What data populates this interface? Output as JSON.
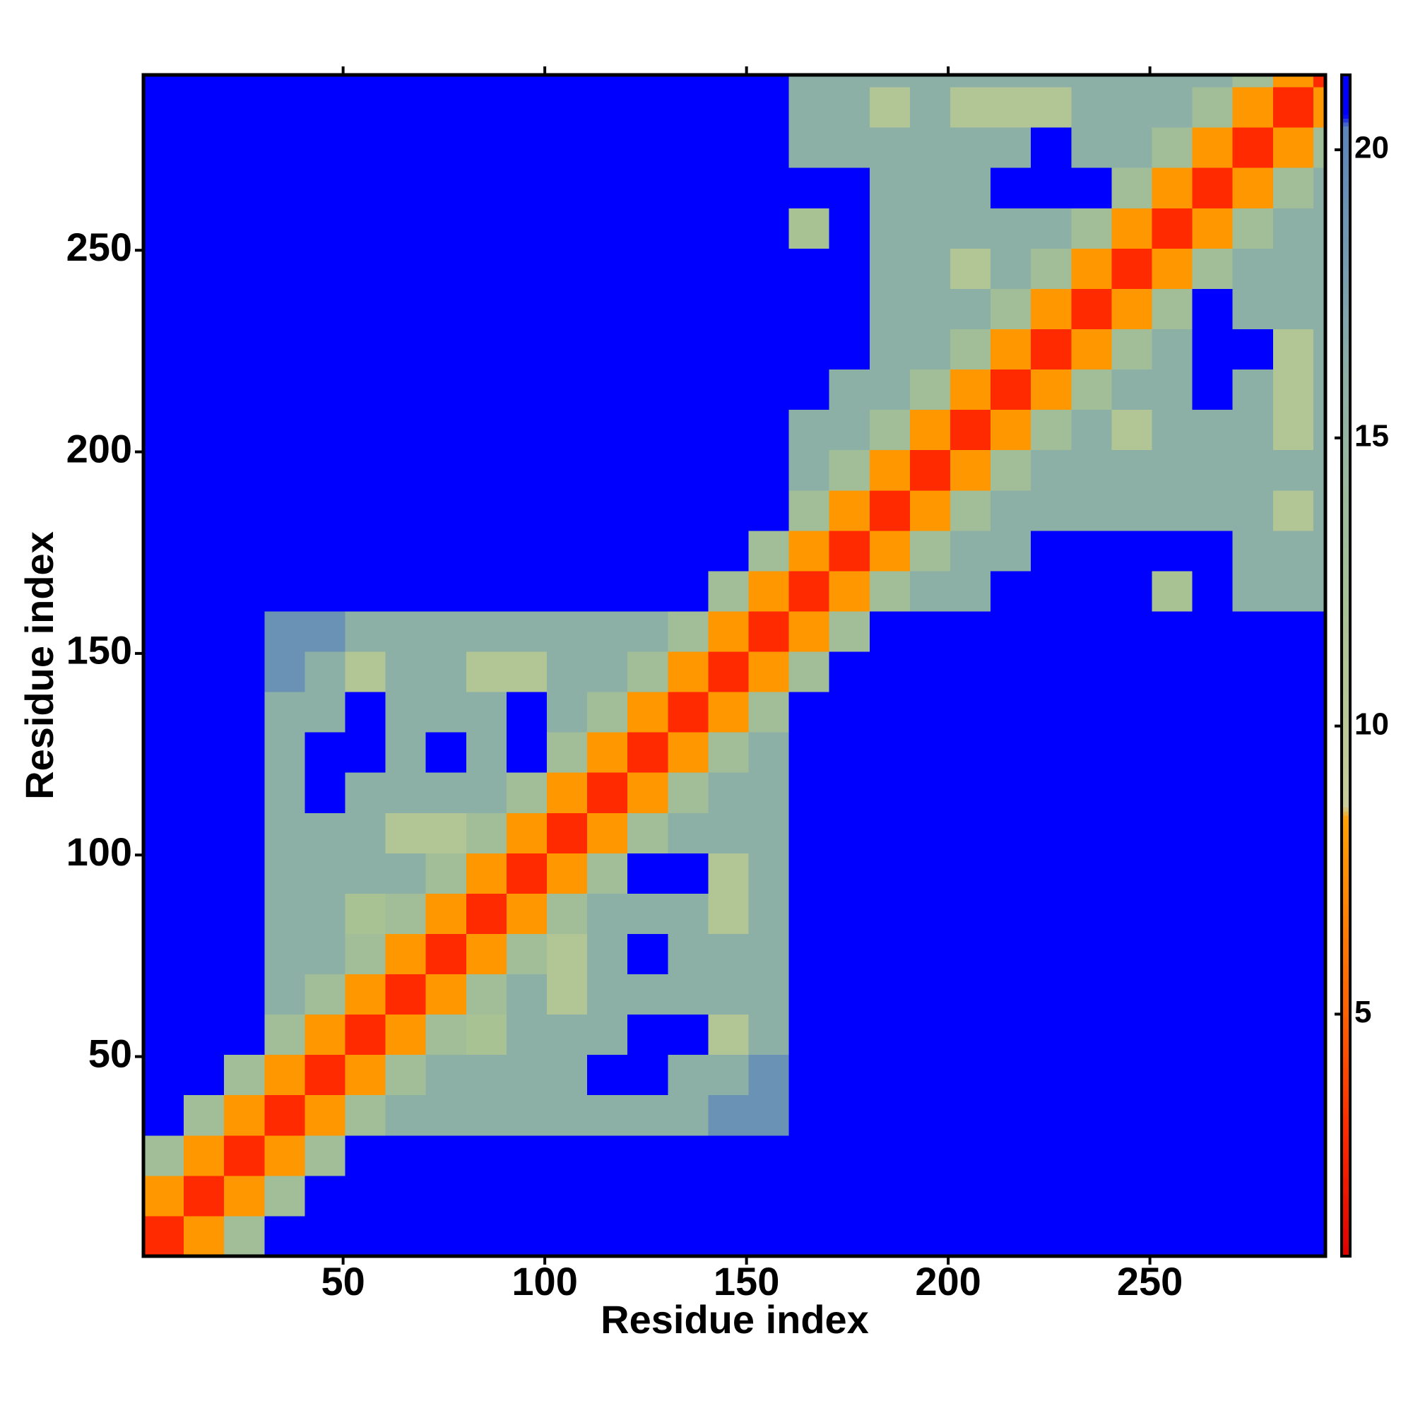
{
  "chart_data": {
    "type": "heatmap",
    "x_label": "Residue index",
    "y_label": "Residue index",
    "xlim": [
      0.5,
      293.5
    ],
    "ylim": [
      0.5,
      293.5
    ],
    "xticks": [
      50,
      100,
      150,
      200,
      250
    ],
    "yticks": [
      50,
      100,
      150,
      200,
      250
    ],
    "xbins": [
      0.5,
      10.5,
      20.5,
      30.5,
      40.5,
      50.5,
      60.5,
      70.5,
      80.5,
      90.5,
      100.5,
      110.5,
      120.5,
      130.5,
      140.5,
      150.5,
      160.5,
      170.5,
      180.5,
      190.5,
      200.5,
      210.5,
      220.5,
      230.5,
      240.5,
      250.5,
      260.5,
      270.5,
      280.5,
      290.5,
      293.5
    ],
    "ybins": [
      0.5,
      10.5,
      20.5,
      30.5,
      40.5,
      50.5,
      60.5,
      70.5,
      80.5,
      90.5,
      100.5,
      110.5,
      120.5,
      130.5,
      140.5,
      150.5,
      160.5,
      170.5,
      180.5,
      190.5,
      200.5,
      210.5,
      220.5,
      230.5,
      240.5,
      250.5,
      260.5,
      270.5,
      280.5,
      290.5,
      293.5
    ],
    "z": [
      [
        3,
        8,
        13,
        21,
        21,
        21,
        21,
        21,
        21,
        21,
        21,
        21,
        21,
        21,
        21,
        21,
        21,
        21,
        21,
        21,
        21,
        21,
        21,
        21,
        21,
        21,
        21,
        21,
        21,
        21
      ],
      [
        8,
        3,
        8,
        13,
        21,
        21,
        21,
        21,
        21,
        21,
        21,
        21,
        21,
        21,
        21,
        21,
        21,
        21,
        21,
        21,
        21,
        21,
        21,
        21,
        21,
        21,
        21,
        21,
        21,
        21
      ],
      [
        13,
        8,
        3,
        8,
        13,
        21,
        21,
        21,
        21,
        21,
        21,
        21,
        21,
        21,
        21,
        21,
        21,
        21,
        21,
        21,
        21,
        21,
        21,
        21,
        21,
        21,
        21,
        21,
        21,
        21
      ],
      [
        21,
        13,
        8,
        3,
        8,
        13,
        16,
        16,
        16,
        16,
        16,
        16,
        16,
        16,
        19,
        19,
        21,
        21,
        21,
        21,
        21,
        21,
        21,
        21,
        21,
        21,
        21,
        21,
        21,
        21
      ],
      [
        21,
        21,
        13,
        8,
        3,
        8,
        13,
        16,
        16,
        16,
        16,
        21,
        21,
        16,
        16,
        19,
        21,
        21,
        21,
        21,
        21,
        21,
        21,
        21,
        21,
        21,
        21,
        21,
        21,
        21
      ],
      [
        21,
        21,
        21,
        13,
        8,
        3,
        8,
        13,
        12,
        16,
        16,
        16,
        21,
        21,
        11,
        16,
        21,
        21,
        21,
        21,
        21,
        21,
        21,
        21,
        21,
        21,
        21,
        21,
        21,
        21
      ],
      [
        21,
        21,
        21,
        16,
        13,
        8,
        3,
        8,
        13,
        16,
        11,
        16,
        16,
        16,
        16,
        16,
        21,
        21,
        21,
        21,
        21,
        21,
        21,
        21,
        21,
        21,
        21,
        21,
        21,
        21
      ],
      [
        21,
        21,
        21,
        16,
        16,
        13,
        8,
        3,
        8,
        13,
        11,
        16,
        21,
        16,
        16,
        16,
        21,
        21,
        21,
        21,
        21,
        21,
        21,
        21,
        21,
        21,
        21,
        21,
        21,
        21
      ],
      [
        21,
        21,
        21,
        16,
        16,
        12,
        13,
        8,
        3,
        8,
        13,
        16,
        16,
        16,
        11,
        16,
        21,
        21,
        21,
        21,
        21,
        21,
        21,
        21,
        21,
        21,
        21,
        21,
        21,
        21
      ],
      [
        21,
        21,
        21,
        16,
        16,
        16,
        16,
        13,
        8,
        3,
        8,
        13,
        21,
        21,
        11,
        16,
        21,
        21,
        21,
        21,
        21,
        21,
        21,
        21,
        21,
        21,
        21,
        21,
        21,
        21
      ],
      [
        21,
        21,
        21,
        16,
        16,
        16,
        11,
        11,
        13,
        8,
        3,
        8,
        13,
        16,
        16,
        16,
        21,
        21,
        21,
        21,
        21,
        21,
        21,
        21,
        21,
        21,
        21,
        21,
        21,
        21
      ],
      [
        21,
        21,
        21,
        16,
        21,
        16,
        16,
        16,
        16,
        13,
        8,
        3,
        8,
        13,
        16,
        16,
        21,
        21,
        21,
        21,
        21,
        21,
        21,
        21,
        21,
        21,
        21,
        21,
        21,
        21
      ],
      [
        21,
        21,
        21,
        16,
        21,
        21,
        16,
        21,
        16,
        21,
        13,
        8,
        3,
        8,
        13,
        16,
        21,
        21,
        21,
        21,
        21,
        21,
        21,
        21,
        21,
        21,
        21,
        21,
        21,
        21
      ],
      [
        21,
        21,
        21,
        16,
        16,
        21,
        16,
        16,
        16,
        21,
        16,
        13,
        8,
        3,
        8,
        13,
        21,
        21,
        21,
        21,
        21,
        21,
        21,
        21,
        21,
        21,
        21,
        21,
        21,
        21
      ],
      [
        21,
        21,
        21,
        19,
        16,
        11,
        16,
        16,
        11,
        11,
        16,
        16,
        13,
        8,
        3,
        8,
        13,
        21,
        21,
        21,
        21,
        21,
        21,
        21,
        21,
        21,
        21,
        21,
        21,
        21
      ],
      [
        21,
        21,
        21,
        19,
        19,
        16,
        16,
        16,
        16,
        16,
        16,
        16,
        16,
        13,
        8,
        3,
        8,
        13,
        21,
        21,
        21,
        21,
        21,
        21,
        21,
        21,
        21,
        21,
        21,
        21
      ],
      [
        21,
        21,
        21,
        21,
        21,
        21,
        21,
        21,
        21,
        21,
        21,
        21,
        21,
        21,
        13,
        8,
        3,
        8,
        13,
        16,
        16,
        21,
        21,
        21,
        21,
        12,
        21,
        16,
        16,
        16
      ],
      [
        21,
        21,
        21,
        21,
        21,
        21,
        21,
        21,
        21,
        21,
        21,
        21,
        21,
        21,
        21,
        13,
        8,
        3,
        8,
        13,
        16,
        16,
        21,
        21,
        21,
        21,
        21,
        16,
        16,
        16
      ],
      [
        21,
        21,
        21,
        21,
        21,
        21,
        21,
        21,
        21,
        21,
        21,
        21,
        21,
        21,
        21,
        21,
        13,
        8,
        3,
        8,
        13,
        16,
        16,
        16,
        16,
        16,
        16,
        16,
        11,
        16
      ],
      [
        21,
        21,
        21,
        21,
        21,
        21,
        21,
        21,
        21,
        21,
        21,
        21,
        21,
        21,
        21,
        21,
        16,
        13,
        8,
        3,
        8,
        13,
        16,
        16,
        16,
        16,
        16,
        16,
        16,
        16
      ],
      [
        21,
        21,
        21,
        21,
        21,
        21,
        21,
        21,
        21,
        21,
        21,
        21,
        21,
        21,
        21,
        21,
        16,
        16,
        13,
        8,
        3,
        8,
        13,
        16,
        11,
        16,
        16,
        16,
        11,
        16
      ],
      [
        21,
        21,
        21,
        21,
        21,
        21,
        21,
        21,
        21,
        21,
        21,
        21,
        21,
        21,
        21,
        21,
        21,
        16,
        16,
        13,
        8,
        3,
        8,
        13,
        16,
        16,
        21,
        16,
        11,
        16
      ],
      [
        21,
        21,
        21,
        21,
        21,
        21,
        21,
        21,
        21,
        21,
        21,
        21,
        21,
        21,
        21,
        21,
        21,
        21,
        16,
        16,
        13,
        8,
        3,
        8,
        13,
        16,
        21,
        21,
        11,
        16
      ],
      [
        21,
        21,
        21,
        21,
        21,
        21,
        21,
        21,
        21,
        21,
        21,
        21,
        21,
        21,
        21,
        21,
        21,
        21,
        16,
        16,
        16,
        13,
        8,
        3,
        8,
        13,
        21,
        16,
        16,
        16
      ],
      [
        21,
        21,
        21,
        21,
        21,
        21,
        21,
        21,
        21,
        21,
        21,
        21,
        21,
        21,
        21,
        21,
        21,
        21,
        16,
        16,
        11,
        16,
        13,
        8,
        3,
        8,
        13,
        16,
        16,
        16
      ],
      [
        21,
        21,
        21,
        21,
        21,
        21,
        21,
        21,
        21,
        21,
        21,
        21,
        21,
        21,
        21,
        21,
        12,
        21,
        16,
        16,
        16,
        16,
        16,
        13,
        8,
        3,
        8,
        13,
        16,
        16
      ],
      [
        21,
        21,
        21,
        21,
        21,
        21,
        21,
        21,
        21,
        21,
        21,
        21,
        21,
        21,
        21,
        21,
        21,
        21,
        16,
        16,
        16,
        21,
        21,
        21,
        13,
        8,
        3,
        8,
        13,
        16
      ],
      [
        21,
        21,
        21,
        21,
        21,
        21,
        21,
        21,
        21,
        21,
        21,
        21,
        21,
        21,
        21,
        21,
        16,
        16,
        16,
        16,
        16,
        16,
        21,
        16,
        16,
        13,
        8,
        3,
        8,
        13
      ],
      [
        21,
        21,
        21,
        21,
        21,
        21,
        21,
        21,
        21,
        21,
        21,
        21,
        21,
        21,
        21,
        21,
        16,
        16,
        11,
        16,
        11,
        11,
        11,
        16,
        16,
        16,
        13,
        8,
        3,
        8
      ],
      [
        21,
        21,
        21,
        21,
        21,
        21,
        21,
        21,
        21,
        21,
        21,
        21,
        21,
        21,
        21,
        21,
        16,
        16,
        16,
        16,
        16,
        16,
        16,
        16,
        16,
        16,
        16,
        13,
        8,
        3
      ]
    ],
    "clim": [
      0.8,
      21.3
    ],
    "cticks": [
      5,
      10,
      15,
      20
    ],
    "colorscale": [
      [
        0.8,
        "#e00000"
      ],
      [
        3,
        "#ff2a00"
      ],
      [
        5,
        "#ff6000"
      ],
      [
        8.4,
        "#ffa000"
      ],
      [
        8.6,
        "#c8cc98"
      ],
      [
        12,
        "#a8c294"
      ],
      [
        16,
        "#8db0a6"
      ],
      [
        20.4,
        "#5a84bc"
      ],
      [
        20.6,
        "#0000ff"
      ],
      [
        21.3,
        "#0000ff"
      ]
    ]
  }
}
